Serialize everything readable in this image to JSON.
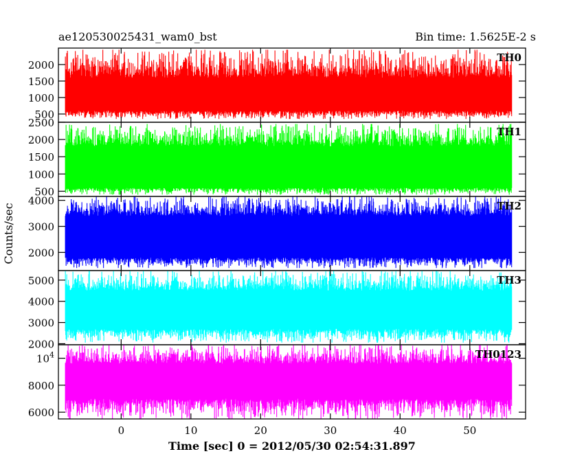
{
  "header": {
    "obs_id": "ae120530025431_wam0_bst",
    "bin_time": "Bin time: 1.5625E-2 s"
  },
  "chart_data": {
    "type": "line",
    "ylabel": "Counts/sec",
    "xlabel": "Time [sec] 0 = 2012/05/30 02:54:31.897",
    "xlim": [
      -9,
      58
    ],
    "x_range_data": [
      -8,
      56
    ],
    "xticks": [
      0,
      10,
      20,
      30,
      40,
      50
    ],
    "grid": false,
    "panels": [
      {
        "label": "TH0",
        "color": "#ff0000",
        "ylim": [
          250,
          2500
        ],
        "yticks": [
          500,
          1000,
          1500,
          2000
        ],
        "ytick_labels": [
          "500",
          "1000",
          "1500",
          "2000"
        ],
        "typical_low": 600,
        "typical_high": 1600,
        "min": 350,
        "max": 2450
      },
      {
        "label": "TH1",
        "color": "#00ff00",
        "ylim": [
          350,
          2500
        ],
        "yticks": [
          500,
          1000,
          1500,
          2000,
          2500
        ],
        "ytick_labels": [
          "500",
          "1000",
          "1500",
          "2000",
          "2500"
        ],
        "typical_low": 600,
        "typical_high": 1800,
        "min": 400,
        "max": 2450
      },
      {
        "label": "TH2",
        "color": "#0000ff",
        "ylim": [
          1300,
          4150
        ],
        "yticks": [
          2000,
          3000,
          4000
        ],
        "ytick_labels": [
          "2000",
          "3000",
          "4000"
        ],
        "typical_low": 1800,
        "typical_high": 3400,
        "min": 1400,
        "max": 4150
      },
      {
        "label": "TH3",
        "color": "#00ffff",
        "ylim": [
          1950,
          5450
        ],
        "yticks": [
          2000,
          3000,
          4000,
          5000
        ],
        "ytick_labels": [
          "2000",
          "3000",
          "4000",
          "5000"
        ],
        "typical_low": 2700,
        "typical_high": 4500,
        "min": 2050,
        "max": 5450
      },
      {
        "label": "TH0123",
        "color": "#ff00ff",
        "ylim": [
          5500,
          11000
        ],
        "yticks": [
          6000,
          8000,
          10000
        ],
        "ytick_labels": [
          "6000",
          "8000",
          "10⁴"
        ],
        "typical_low": 7000,
        "typical_high": 9600,
        "min": 5500,
        "max": 11000
      }
    ]
  }
}
